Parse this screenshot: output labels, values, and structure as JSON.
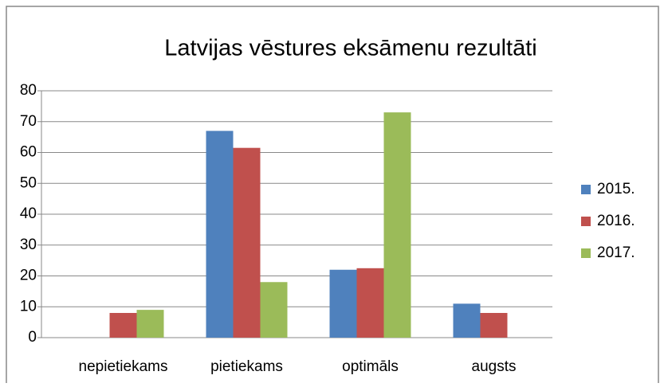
{
  "chart_data": {
    "type": "bar",
    "title": "Latvijas vēstures eksāmenu rezultāti",
    "categories": [
      "nepietiekams",
      "pietiekams",
      "optimāls",
      "augsts"
    ],
    "series": [
      {
        "name": "2015.",
        "color": "#4f81bd",
        "values": [
          0,
          67,
          22,
          11
        ]
      },
      {
        "name": "2016.",
        "color": "#c0504d",
        "values": [
          8,
          61.5,
          22.5,
          8
        ]
      },
      {
        "name": "2017.",
        "color": "#9bbb59",
        "values": [
          9,
          18,
          73,
          0
        ]
      }
    ],
    "ylim": [
      0,
      80
    ],
    "yticks": [
      0,
      10,
      20,
      30,
      40,
      50,
      60,
      70,
      80
    ],
    "grid": true,
    "legend": "right"
  }
}
